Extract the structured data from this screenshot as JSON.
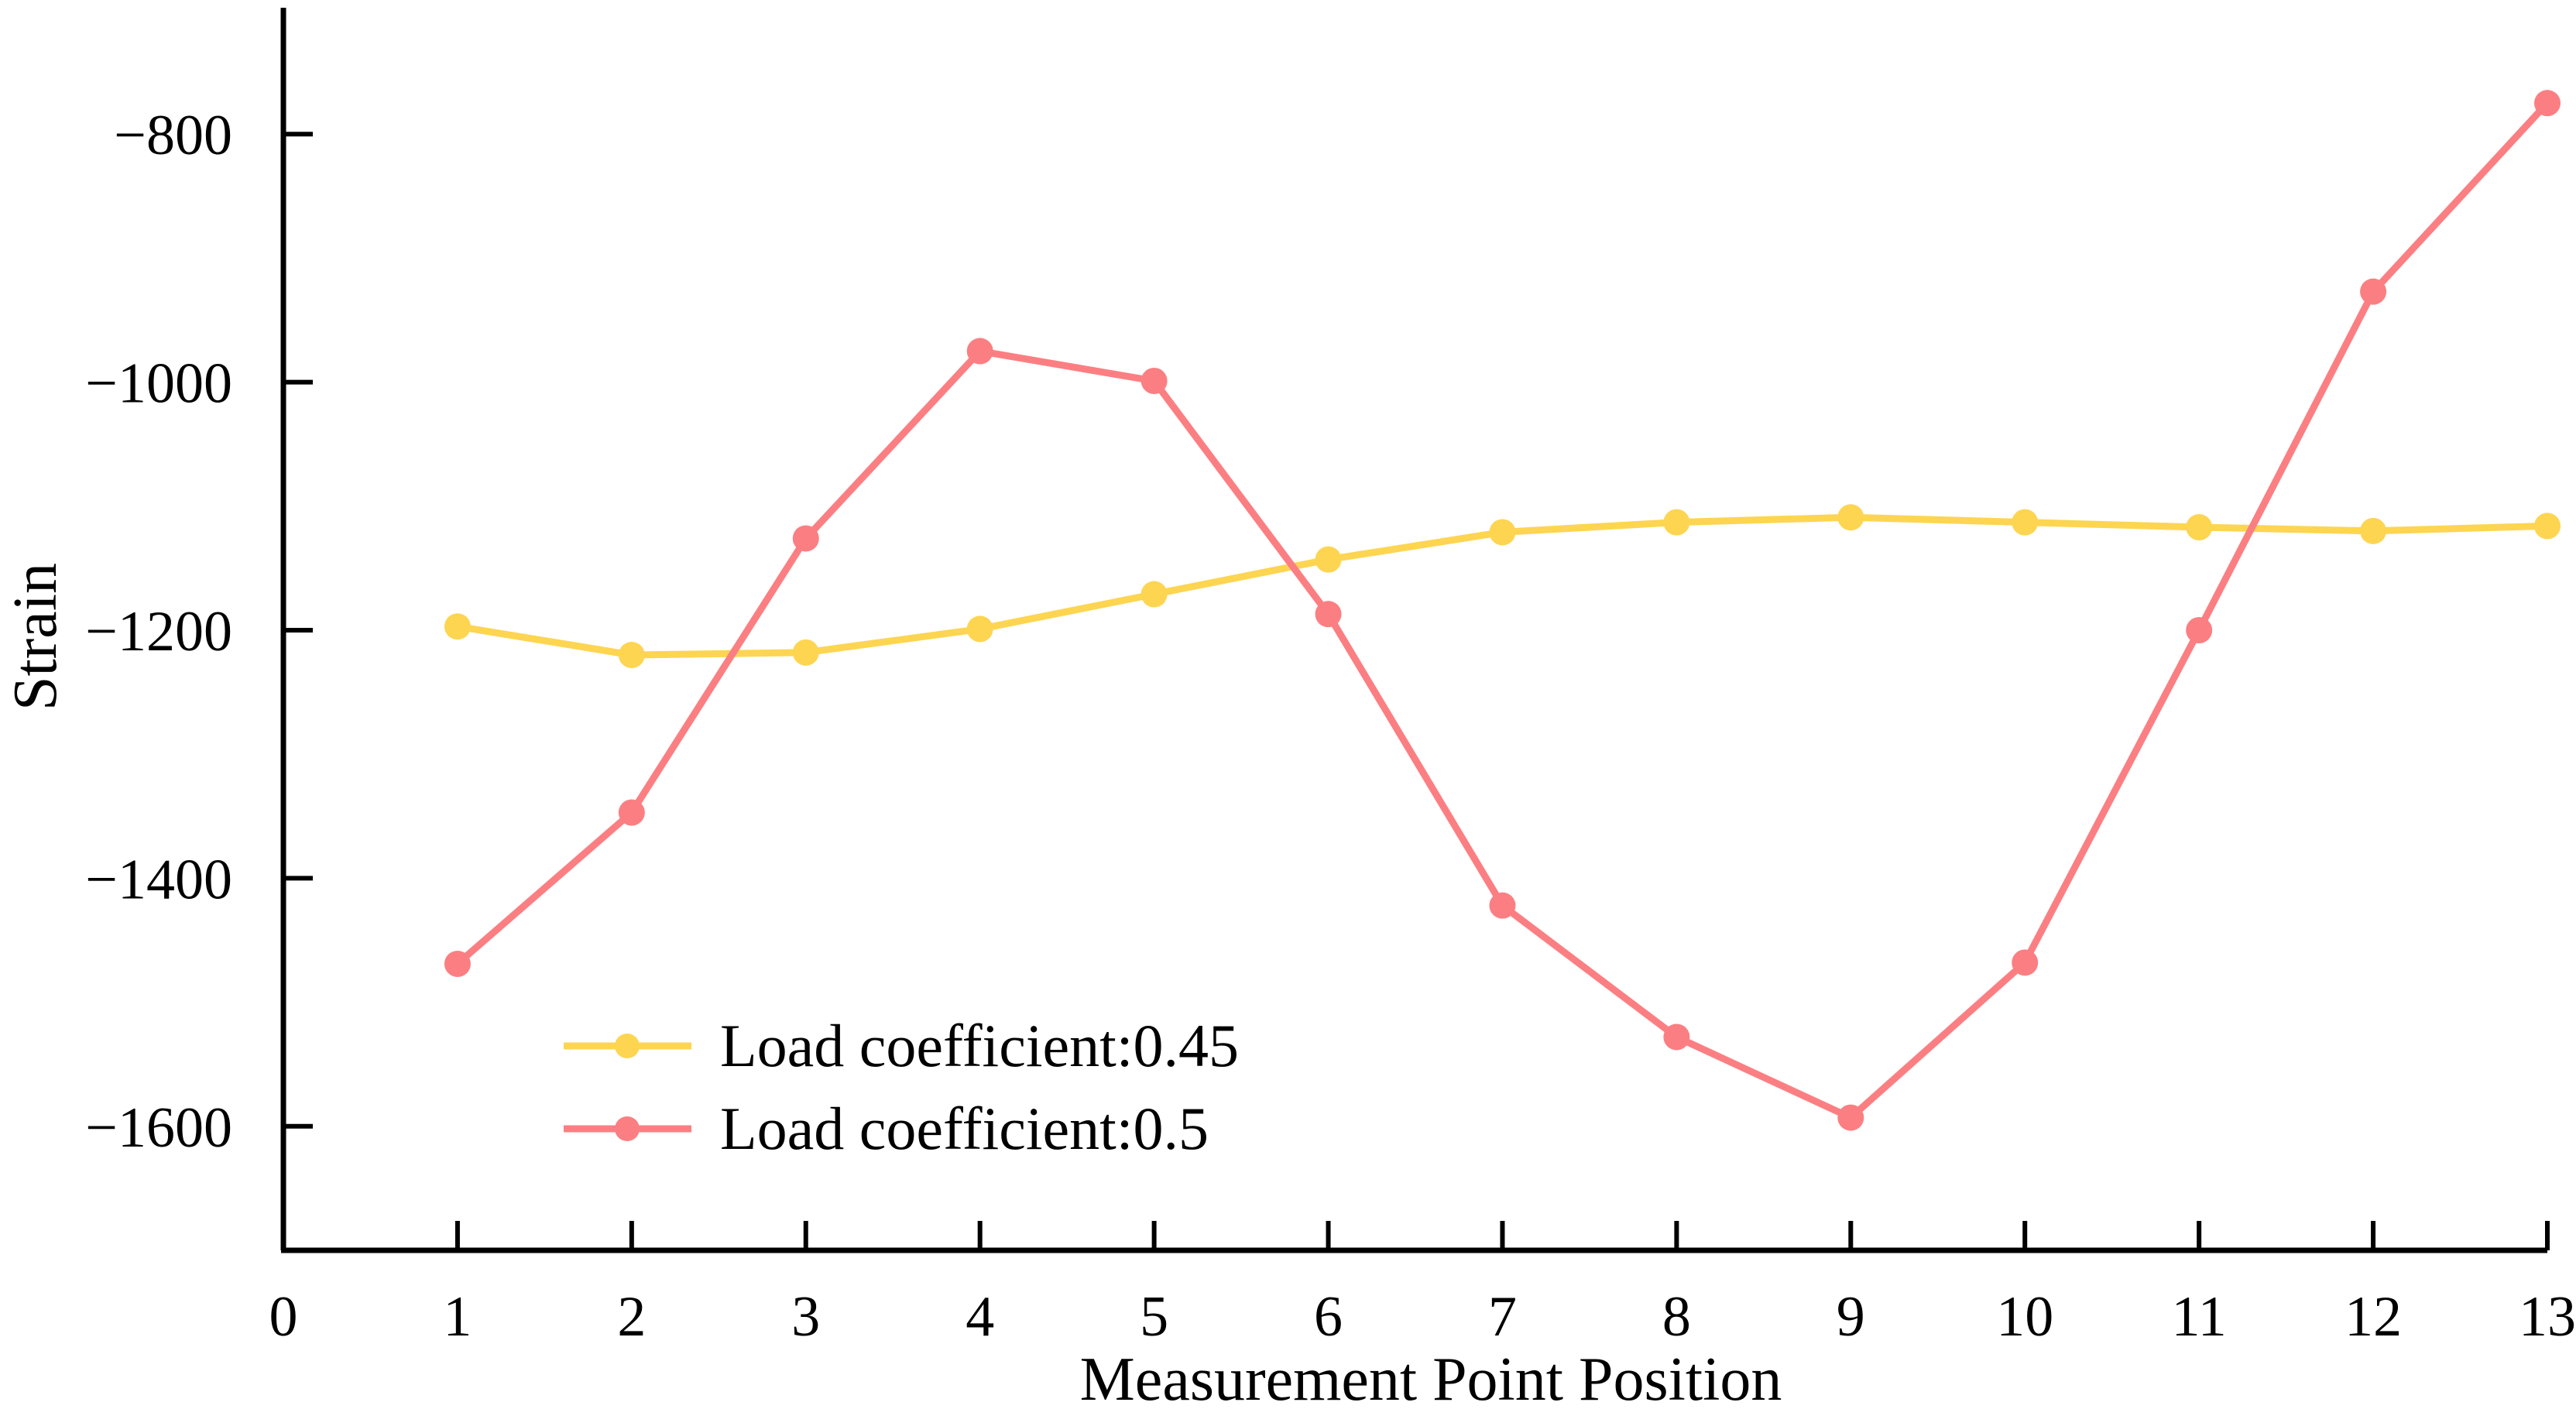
{
  "chart_data": {
    "type": "line",
    "title": "",
    "xlabel": "Measurement Point Position",
    "ylabel": "Strain",
    "xlim": [
      0,
      13
    ],
    "ylim": [
      -1700,
      -700
    ],
    "x_ticks": [
      0,
      1,
      2,
      3,
      4,
      5,
      6,
      7,
      8,
      9,
      10,
      11,
      12,
      13
    ],
    "x_tick_labels": [
      "0",
      "1",
      "2",
      "3",
      "4",
      "5",
      "6",
      "7",
      "8",
      "9",
      "10",
      "11",
      "12",
      "13"
    ],
    "y_ticks": [
      -800,
      -1000,
      -1200,
      -1400,
      -1600
    ],
    "y_tick_labels": [
      "−800",
      "−1000",
      "−1200",
      "−1400",
      "−1600"
    ],
    "grid": false,
    "legend_position": "bottom-left",
    "series": [
      {
        "name": "Load coefficient:0.45",
        "color": "#fdd551",
        "x": [
          1,
          2,
          3,
          4,
          5,
          6,
          7,
          8,
          9,
          10,
          11,
          12,
          13
        ],
        "values": [
          -1197,
          -1220,
          -1218,
          -1199,
          -1171,
          -1143,
          -1121,
          -1113,
          -1109,
          -1113,
          -1117,
          -1120,
          -1116
        ]
      },
      {
        "name": "Load coefficient:0.5",
        "color": "#fb7f82",
        "x": [
          1,
          2,
          3,
          4,
          5,
          6,
          7,
          8,
          9,
          10,
          11,
          12,
          13
        ],
        "values": [
          -1469,
          -1347,
          -1126,
          -975,
          -999,
          -1187,
          -1422,
          -1528,
          -1593,
          -1468,
          -1200,
          -927,
          -775
        ]
      }
    ]
  }
}
